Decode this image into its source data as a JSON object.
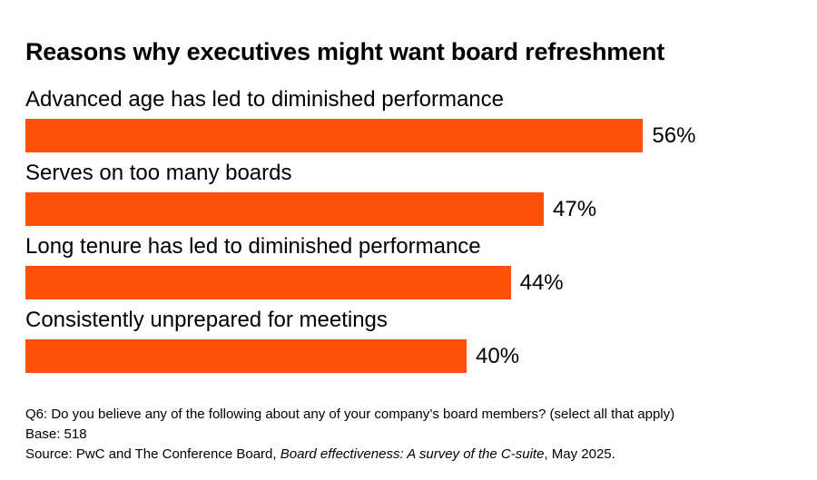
{
  "chart_data": {
    "type": "bar",
    "orientation": "horizontal",
    "title": "Reasons why executives might want board refreshment",
    "categories": [
      "Advanced age has led to diminished performance",
      "Serves on too many boards",
      "Long tenure has led to diminished performance",
      "Consistently unprepared for meetings"
    ],
    "values": [
      56,
      47,
      44,
      40
    ],
    "value_labels": [
      "56%",
      "47%",
      "44%",
      "40%"
    ],
    "xlim": [
      0,
      100
    ],
    "grid": false,
    "legend": "none",
    "bar_color": "#FD5108"
  },
  "footnotes": {
    "question": "Q6: Do you believe any of the following about any of your company’s board members? (select all that apply)",
    "base": "Base: 518",
    "source_prefix": "Source: PwC and The Conference Board, ",
    "source_title": "Board effectiveness: A survey of the C-suite",
    "source_suffix": ", May 2025."
  }
}
